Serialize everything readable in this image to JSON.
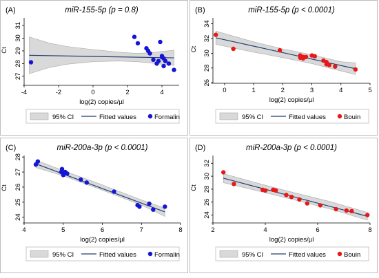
{
  "chart_data": [
    {
      "type": "scatter",
      "panel_label": "(A)",
      "title": "miR-155-5p (p = 0.8)",
      "xlabel": "log(2) copies/µl",
      "ylabel": "Ct",
      "xlim": [
        -4,
        5
      ],
      "ylim": [
        26.5,
        31.6
      ],
      "xticks": [
        -4,
        -2,
        0,
        2,
        4
      ],
      "yticks": [
        27,
        28,
        29,
        30,
        31
      ],
      "point_color": "#1515d6",
      "fit": {
        "x0": -3.7,
        "y0": 28.65,
        "x1": 4.7,
        "y1": 28.45
      },
      "ci": {
        "x": [
          -3.7,
          -2.5,
          -1.5,
          0,
          1.5,
          2.5,
          3.3,
          4.0,
          4.7
        ],
        "lower": [
          27.2,
          27.7,
          27.95,
          28.15,
          28.2,
          28.15,
          28.05,
          27.95,
          27.85
        ],
        "upper": [
          30.1,
          29.6,
          29.35,
          29.1,
          28.9,
          28.8,
          28.85,
          28.95,
          29.05
        ]
      },
      "points": [
        [
          -3.6,
          28.1
        ],
        [
          2.4,
          30.1
        ],
        [
          2.6,
          29.6
        ],
        [
          3.1,
          29.2
        ],
        [
          3.2,
          29.0
        ],
        [
          3.3,
          28.8
        ],
        [
          3.5,
          28.3
        ],
        [
          3.7,
          28.0
        ],
        [
          3.8,
          28.2
        ],
        [
          3.9,
          29.7
        ],
        [
          4.0,
          28.6
        ],
        [
          4.0,
          28.5
        ],
        [
          4.1,
          28.4
        ],
        [
          4.1,
          27.8
        ],
        [
          4.2,
          28.2
        ],
        [
          4.4,
          28.0
        ],
        [
          4.7,
          27.5
        ]
      ],
      "legend": [
        {
          "kind": "ci",
          "label": "95% CI"
        },
        {
          "kind": "line",
          "label": "Fitted values"
        },
        {
          "kind": "point",
          "label": "Formalin"
        }
      ]
    },
    {
      "type": "scatter",
      "panel_label": "(B)",
      "title": "miR-155-5p (p < 0.0001)",
      "xlabel": "log(2) copies/µl",
      "ylabel": "Ct",
      "xlim": [
        -0.4,
        5
      ],
      "ylim": [
        26.3,
        34.8
      ],
      "xticks": [
        0,
        1,
        2,
        3,
        4,
        5
      ],
      "yticks": [
        26,
        28,
        30,
        32,
        34
      ],
      "point_color": "#e81818",
      "fit": {
        "x0": -0.3,
        "y0": 32.1,
        "x1": 4.5,
        "y1": 27.9
      },
      "ci": {
        "x": [
          -0.3,
          1,
          2,
          3,
          4,
          4.5
        ],
        "lower": [
          31.2,
          30.15,
          29.4,
          28.6,
          27.6,
          27.1
        ],
        "upper": [
          33.0,
          31.55,
          30.6,
          29.8,
          28.85,
          28.7
        ]
      },
      "points": [
        [
          -0.3,
          32.5
        ],
        [
          0.3,
          30.6
        ],
        [
          1.9,
          30.4
        ],
        [
          2.6,
          29.7
        ],
        [
          2.6,
          29.4
        ],
        [
          2.7,
          29.5
        ],
        [
          2.7,
          29.3
        ],
        [
          2.8,
          29.5
        ],
        [
          3.0,
          29.7
        ],
        [
          3.1,
          29.6
        ],
        [
          3.4,
          29.0
        ],
        [
          3.5,
          28.8
        ],
        [
          3.5,
          28.5
        ],
        [
          3.6,
          28.4
        ],
        [
          3.8,
          28.2
        ],
        [
          4.5,
          27.8
        ]
      ],
      "legend": [
        {
          "kind": "ci",
          "label": "95% CI"
        },
        {
          "kind": "line",
          "label": "Fitted values"
        },
        {
          "kind": "point",
          "label": "Bouin"
        }
      ]
    },
    {
      "type": "scatter",
      "panel_label": "(C)",
      "title": "miR-200a-3p (p < 0.0001)",
      "xlabel": "log(2) copies/µl",
      "ylabel": "Ct",
      "xlim": [
        4,
        8
      ],
      "ylim": [
        23.8,
        28.1
      ],
      "xticks": [
        4,
        5,
        6,
        7,
        8
      ],
      "yticks": [
        24,
        25,
        26,
        27,
        28
      ],
      "point_color": "#1515d6",
      "fit": {
        "x0": 4.3,
        "y0": 27.55,
        "x1": 7.6,
        "y1": 24.35
      },
      "ci": {
        "x": [
          4.3,
          5,
          6,
          7,
          7.6
        ],
        "lower": [
          27.3,
          26.75,
          25.8,
          24.8,
          24.05
        ],
        "upper": [
          27.8,
          27.1,
          26.15,
          25.15,
          24.6
        ]
      },
      "points": [
        [
          4.3,
          27.5
        ],
        [
          4.35,
          27.7
        ],
        [
          4.95,
          27.0
        ],
        [
          4.97,
          27.2
        ],
        [
          5.0,
          26.8
        ],
        [
          5.05,
          27.0
        ],
        [
          5.1,
          26.9
        ],
        [
          5.45,
          26.5
        ],
        [
          5.6,
          26.3
        ],
        [
          6.3,
          25.7
        ],
        [
          6.9,
          24.8
        ],
        [
          6.95,
          24.7
        ],
        [
          7.3,
          24.5
        ],
        [
          7.6,
          24.7
        ],
        [
          7.2,
          24.9
        ]
      ],
      "legend": [
        {
          "kind": "ci",
          "label": "95% CI"
        },
        {
          "kind": "line",
          "label": "Fitted values"
        },
        {
          "kind": "point",
          "label": "Formalin"
        }
      ]
    },
    {
      "type": "scatter",
      "panel_label": "(D)",
      "title": "miR-200a-3p (p < 0.0001)",
      "xlabel": "log(2) copies/µl",
      "ylabel": "Ct",
      "xlim": [
        2,
        8
      ],
      "ylim": [
        23.2,
        33.2
      ],
      "xticks": [
        2,
        4,
        6,
        8
      ],
      "yticks": [
        24,
        26,
        28,
        30,
        32
      ],
      "point_color": "#e81818",
      "fit": {
        "x0": 2.4,
        "y0": 29.7,
        "x1": 7.9,
        "y1": 23.8
      },
      "ci": {
        "x": [
          2.4,
          3.5,
          5,
          6.5,
          7.9
        ],
        "lower": [
          29.0,
          27.95,
          26.45,
          24.9,
          23.2
        ],
        "upper": [
          30.4,
          29.15,
          27.55,
          26.05,
          24.4
        ]
      },
      "points": [
        [
          2.4,
          30.6
        ],
        [
          2.8,
          28.8
        ],
        [
          3.9,
          27.9
        ],
        [
          4.0,
          27.8
        ],
        [
          4.3,
          27.9
        ],
        [
          4.4,
          27.8
        ],
        [
          4.8,
          27.1
        ],
        [
          5.0,
          26.8
        ],
        [
          5.3,
          26.4
        ],
        [
          5.6,
          25.8
        ],
        [
          6.1,
          25.5
        ],
        [
          6.7,
          24.9
        ],
        [
          7.1,
          24.7
        ],
        [
          7.3,
          24.6
        ],
        [
          7.9,
          24.0
        ]
      ],
      "legend": [
        {
          "kind": "ci",
          "label": "95% CI"
        },
        {
          "kind": "line",
          "label": "Fitted values"
        },
        {
          "kind": "point",
          "label": "Bouin"
        }
      ]
    }
  ]
}
